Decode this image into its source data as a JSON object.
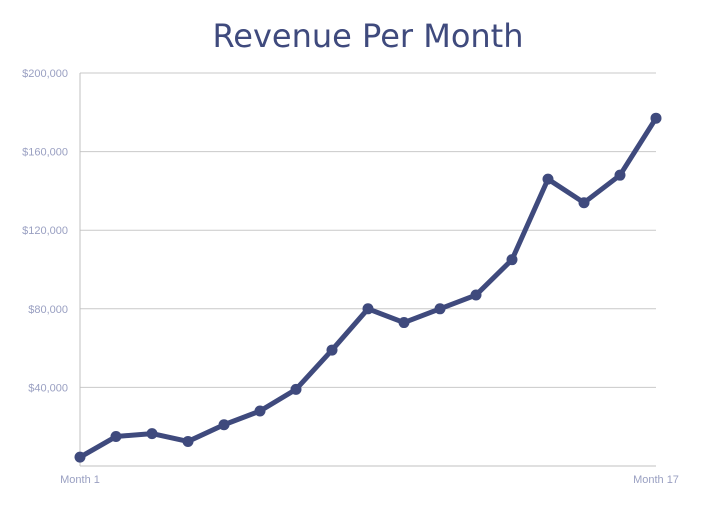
{
  "colors": {
    "series": "#3f4a7d",
    "title": "#3f4a7d",
    "tick_label": "#9aa0c2",
    "grid": "#c9c9c9"
  },
  "chart_data": {
    "type": "line",
    "title": "Revenue Per Month",
    "xlabel": "",
    "ylabel": "",
    "x": [
      1,
      2,
      3,
      4,
      5,
      6,
      7,
      8,
      9,
      10,
      11,
      12,
      13,
      14,
      15,
      16,
      17
    ],
    "x_tick_labels": [
      {
        "x": 1,
        "label": "Month 1"
      },
      {
        "x": 17,
        "label": "Month 17"
      }
    ],
    "y_ticks": [
      0,
      40000,
      80000,
      120000,
      160000,
      200000
    ],
    "y_tick_labels": [
      "",
      "$40,000",
      "$80,000",
      "$120,000",
      "$160,000",
      "$200,000"
    ],
    "ylim": [
      0,
      200000
    ],
    "xlim": [
      1,
      17
    ],
    "grid": true,
    "legend": "none",
    "series": [
      {
        "values": [
          4500,
          15000,
          16500,
          12500,
          21000,
          28000,
          39000,
          59000,
          80000,
          73000,
          80000,
          87000,
          105000,
          146000,
          134000,
          148000,
          177000
        ]
      }
    ]
  }
}
